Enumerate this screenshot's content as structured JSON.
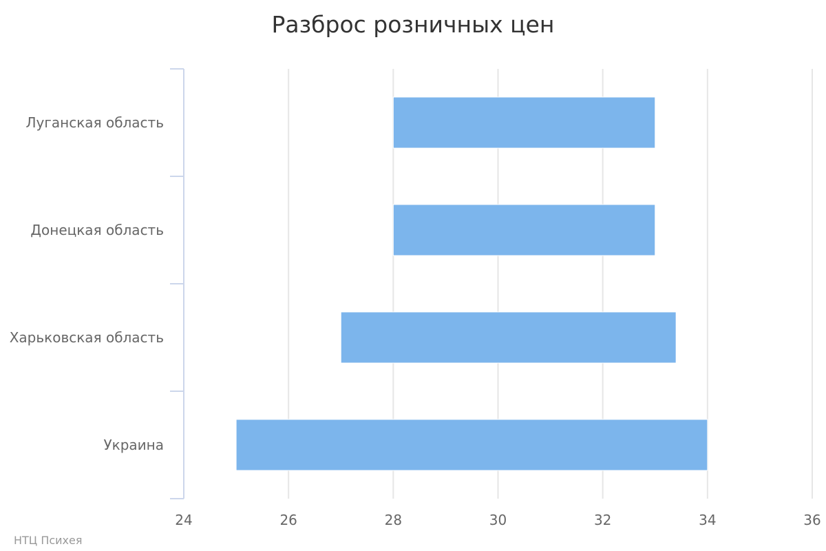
{
  "chart_data": {
    "type": "bar",
    "orientation": "horizontal",
    "subtype": "range",
    "title": "Разброс розничных цен",
    "categories": [
      "Луганская область",
      "Донецкая область",
      "Харьковская область",
      "Украина"
    ],
    "series": [
      {
        "low": [
          28,
          28,
          27,
          25
        ],
        "high": [
          33,
          33,
          33.4,
          34
        ]
      }
    ],
    "xlim": [
      24,
      36
    ],
    "xticks": [
      "24",
      "26",
      "28",
      "30",
      "32",
      "34",
      "36"
    ],
    "xlabel": "",
    "ylabel": "",
    "grid": true,
    "legend": "none",
    "bar_color": "#7cb5ec"
  },
  "credit": "НТЦ Психея"
}
